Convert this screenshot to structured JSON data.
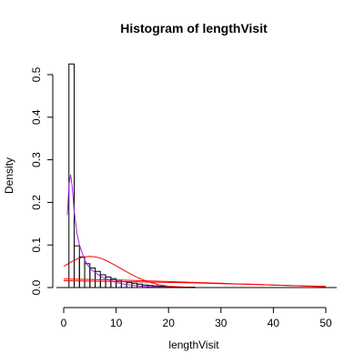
{
  "chart_data": {
    "type": "bar",
    "title": "Histogram of lengthVisit",
    "xlabel": "lengthVisit",
    "ylabel": "Density",
    "xlim": [
      0,
      52
    ],
    "ylim": [
      0,
      0.525
    ],
    "x_ticks": [
      "0",
      "10",
      "20",
      "30",
      "40",
      "50"
    ],
    "y_ticks": [
      "0.0",
      "0.1",
      "0.2",
      "0.3",
      "0.4",
      "0.5"
    ],
    "bin_width": 1,
    "bins": [
      {
        "start": 1,
        "end": 2,
        "density": 0.525
      },
      {
        "start": 2,
        "end": 3,
        "density": 0.098
      },
      {
        "start": 3,
        "end": 4,
        "density": 0.072
      },
      {
        "start": 4,
        "end": 5,
        "density": 0.056
      },
      {
        "start": 5,
        "end": 6,
        "density": 0.046
      },
      {
        "start": 6,
        "end": 7,
        "density": 0.038
      },
      {
        "start": 7,
        "end": 8,
        "density": 0.03
      },
      {
        "start": 8,
        "end": 9,
        "density": 0.025
      },
      {
        "start": 9,
        "end": 10,
        "density": 0.021
      },
      {
        "start": 10,
        "end": 11,
        "density": 0.017
      },
      {
        "start": 11,
        "end": 12,
        "density": 0.014
      },
      {
        "start": 12,
        "end": 13,
        "density": 0.012
      },
      {
        "start": 13,
        "end": 14,
        "density": 0.01
      },
      {
        "start": 14,
        "end": 15,
        "density": 0.008
      },
      {
        "start": 15,
        "end": 16,
        "density": 0.006
      },
      {
        "start": 16,
        "end": 17,
        "density": 0.005
      },
      {
        "start": 17,
        "end": 18,
        "density": 0.004
      },
      {
        "start": 18,
        "end": 19,
        "density": 0.003
      },
      {
        "start": 19,
        "end": 20,
        "density": 0.002
      },
      {
        "start": 20,
        "end": 21,
        "density": 0.002
      },
      {
        "start": 21,
        "end": 22,
        "density": 0.001
      },
      {
        "start": 22,
        "end": 23,
        "density": 0.001
      },
      {
        "start": 23,
        "end": 24,
        "density": 0.001
      },
      {
        "start": 24,
        "end": 25,
        "density": 0.001
      }
    ],
    "series": [
      {
        "color": "#a020f0",
        "x": [
          0.7,
          1.0,
          1.3,
          1.6,
          2.0,
          2.5,
          3.0,
          4.0,
          5.0,
          6.0,
          7.0,
          8.0,
          10.0,
          12.0,
          15.0,
          20.0,
          25.0,
          30.0,
          35.0,
          40.0,
          45.0,
          50.0
        ],
        "y": [
          0.17,
          0.24,
          0.265,
          0.24,
          0.18,
          0.13,
          0.1,
          0.065,
          0.045,
          0.035,
          0.027,
          0.02,
          0.012,
          0.007,
          0.003,
          0.0005,
          0.0001,
          0,
          0,
          0,
          0,
          0
        ]
      },
      {
        "color": "#ff0000",
        "x": [
          0,
          1,
          2,
          3,
          4,
          5,
          6,
          7,
          8,
          9,
          10,
          12,
          14,
          16,
          18,
          20,
          25,
          30,
          40,
          50
        ],
        "y": [
          0.05,
          0.057,
          0.064,
          0.069,
          0.072,
          0.073,
          0.072,
          0.069,
          0.064,
          0.058,
          0.051,
          0.037,
          0.024,
          0.014,
          0.007,
          0.003,
          0.0003,
          0,
          0,
          0
        ]
      },
      {
        "color": "#ff0000",
        "x": [
          0,
          5,
          10,
          15,
          20,
          25,
          30,
          35,
          40,
          45,
          50
        ],
        "y": [
          0.02,
          0.019,
          0.018,
          0.016,
          0.014,
          0.012,
          0.01,
          0.008,
          0.006,
          0.004,
          0.003
        ]
      },
      {
        "color": "#ff0000",
        "x": [
          0,
          5,
          10,
          15,
          20,
          25,
          30,
          35,
          40,
          45,
          50
        ],
        "y": [
          0.016,
          0.015,
          0.014,
          0.013,
          0.012,
          0.011,
          0.009,
          0.008,
          0.006,
          0.004,
          0.002
        ]
      }
    ]
  }
}
